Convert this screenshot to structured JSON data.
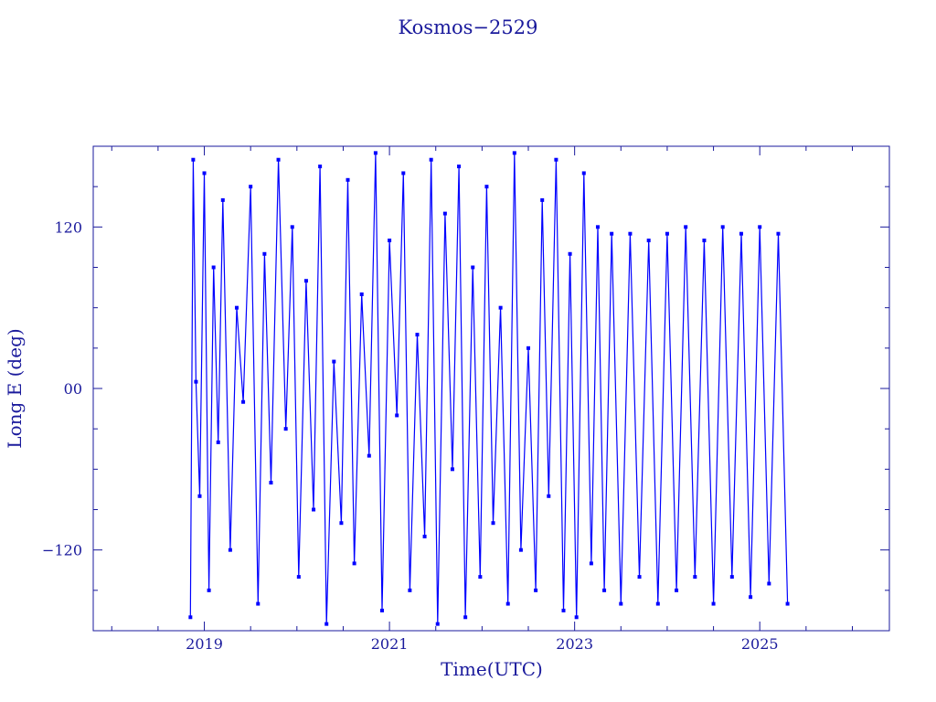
{
  "chart_data": {
    "type": "line",
    "title": "Kosmos−2529",
    "xlabel": "Time(UTC)",
    "ylabel": "Long E (deg)",
    "xlim": [
      2017.8,
      2026.4
    ],
    "ylim": [
      -180,
      180
    ],
    "x_ticks": [
      {
        "value": 2019,
        "label": "2019"
      },
      {
        "value": 2021,
        "label": "2021"
      },
      {
        "value": 2023,
        "label": "2023"
      },
      {
        "value": 2025,
        "label": "2025"
      }
    ],
    "y_ticks": [
      {
        "value": 120,
        "label": "120"
      },
      {
        "value": 0,
        "label": "00"
      },
      {
        "value": -120,
        "label": "−120"
      }
    ],
    "x_minor_ticks": [
      2018,
      2018.5,
      2019.5,
      2020,
      2020.5,
      2021.5,
      2022,
      2022.5,
      2023.5,
      2024,
      2024.5,
      2025.5,
      2026
    ],
    "y_minor_ticks": [
      -150,
      -90,
      -60,
      -30,
      30,
      60,
      90,
      150
    ],
    "grid": false,
    "legend": "none",
    "series": [
      {
        "x": [
          2018.85,
          2018.88,
          2018.91,
          2018.95,
          2019.0,
          2019.05,
          2019.1,
          2019.15,
          2019.2,
          2019.28,
          2019.35,
          2019.42,
          2019.5,
          2019.58,
          2019.65,
          2019.72,
          2019.8,
          2019.88,
          2019.95,
          2020.02,
          2020.1,
          2020.18,
          2020.25,
          2020.32,
          2020.4,
          2020.48,
          2020.55,
          2020.62,
          2020.7,
          2020.78,
          2020.85,
          2020.92,
          2021.0,
          2021.08,
          2021.15,
          2021.22,
          2021.3,
          2021.38,
          2021.45,
          2021.52,
          2021.6,
          2021.68,
          2021.75,
          2021.82,
          2021.9,
          2021.98,
          2022.05,
          2022.12,
          2022.2,
          2022.28,
          2022.35,
          2022.42,
          2022.5,
          2022.58,
          2022.65,
          2022.72,
          2022.8,
          2022.88,
          2022.95,
          2023.02,
          2023.1,
          2023.18,
          2023.25,
          2023.32,
          2023.4,
          2023.5,
          2023.6,
          2023.7,
          2023.8,
          2023.9,
          2024.0,
          2024.1,
          2024.2,
          2024.3,
          2024.4,
          2024.5,
          2024.6,
          2024.7,
          2024.8,
          2024.9,
          2025.0,
          2025.1,
          2025.2,
          2025.3
        ],
        "y": [
          -170,
          170,
          5,
          -80,
          160,
          -150,
          90,
          -40,
          140,
          -120,
          60,
          -10,
          150,
          -160,
          100,
          -70,
          170,
          -30,
          120,
          -140,
          80,
          -90,
          165,
          -175,
          20,
          -100,
          155,
          -130,
          70,
          -50,
          175,
          -165,
          110,
          -20,
          160,
          -150,
          40,
          -110,
          170,
          -175,
          130,
          -60,
          165,
          -170,
          90,
          -140,
          150,
          -100,
          60,
          -160,
          175,
          -120,
          30,
          -150,
          140,
          -80,
          170,
          -165,
          100,
          -170,
          160,
          -130,
          120,
          -150,
          115,
          -160,
          115,
          -140,
          110,
          -160,
          115,
          -150,
          120,
          -140,
          110,
          -160,
          120,
          -140,
          115,
          -155,
          120,
          -145,
          115,
          -160
        ]
      }
    ]
  }
}
